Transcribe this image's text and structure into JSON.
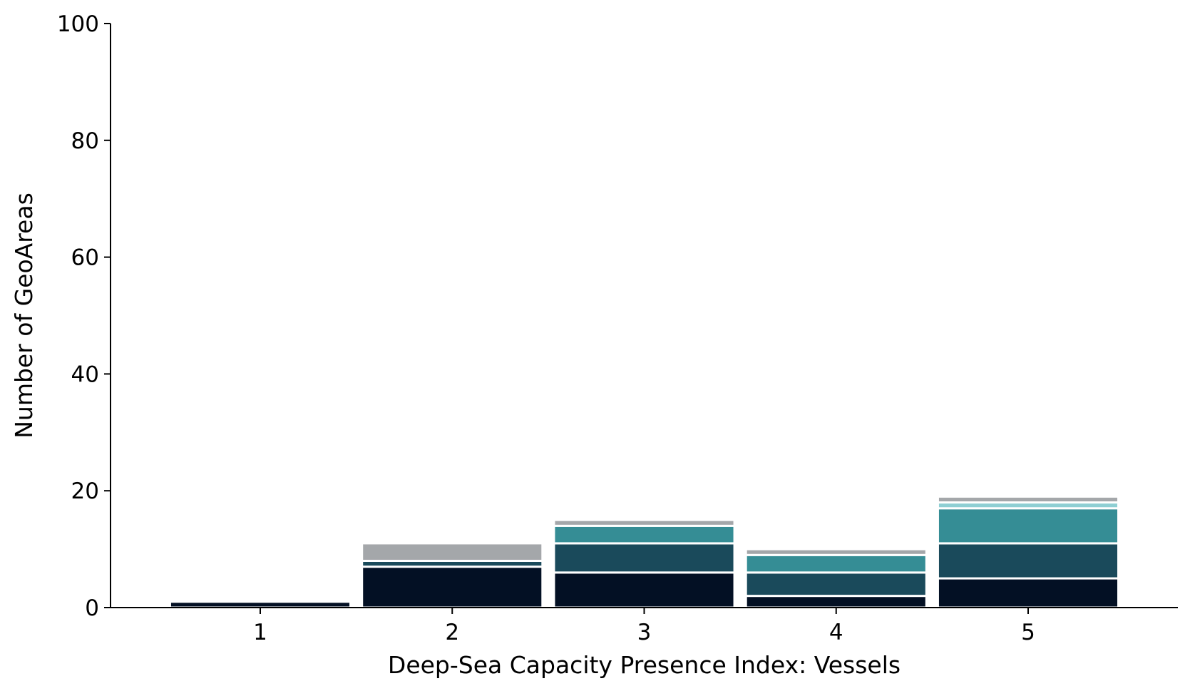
{
  "chart_data": {
    "type": "bar",
    "stacked": true,
    "title": "",
    "xlabel": "Deep-Sea Capacity Presence Index: Vessels",
    "ylabel": "Number of GeoAreas",
    "categories": [
      "1",
      "2",
      "3",
      "4",
      "5"
    ],
    "ylim": [
      0,
      100
    ],
    "yticks": [
      "0",
      "20",
      "40",
      "60",
      "80",
      "100"
    ],
    "grid": false,
    "legend": "none",
    "series": [
      {
        "color": "#031024",
        "values": [
          1,
          7,
          6,
          2,
          5
        ]
      },
      {
        "color": "#1a4a5b",
        "values": [
          0,
          1,
          5,
          4,
          6
        ]
      },
      {
        "color": "#358d95",
        "values": [
          0,
          0,
          3,
          3,
          6
        ]
      },
      {
        "color": "#8ecfd3",
        "values": [
          0,
          0,
          0,
          0,
          1
        ]
      },
      {
        "color": "#a4a7aa",
        "values": [
          0,
          3,
          1,
          1,
          1
        ]
      }
    ]
  }
}
